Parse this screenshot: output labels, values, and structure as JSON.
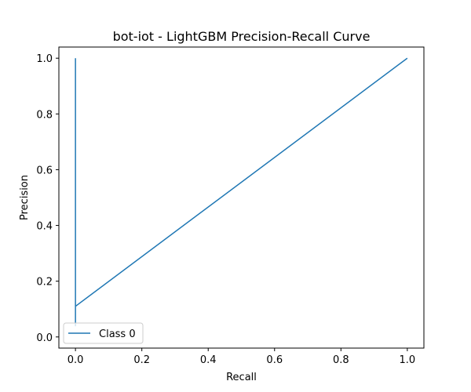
{
  "chart_data": {
    "type": "line",
    "title": "bot-iot - LightGBM Precision-Recall Curve",
    "xlabel": "Recall",
    "ylabel": "Precision",
    "xlim": [
      -0.05,
      1.05
    ],
    "ylim": [
      -0.04,
      1.04
    ],
    "xticks": [
      0.0,
      0.2,
      0.4,
      0.6,
      0.8,
      1.0
    ],
    "yticks": [
      0.0,
      0.2,
      0.4,
      0.6,
      0.8,
      1.0
    ],
    "xtick_labels": [
      "0.0",
      "0.2",
      "0.4",
      "0.6",
      "0.8",
      "1.0"
    ],
    "ytick_labels": [
      "0.0",
      "0.2",
      "0.4",
      "0.6",
      "0.8",
      "1.0"
    ],
    "grid": false,
    "legend_position": "lower-left",
    "series": [
      {
        "name": "Class 0",
        "color": "#1f77b4",
        "x": [
          0.0,
          0.0,
          0.0,
          1.0
        ],
        "y": [
          1.0,
          0.04,
          0.11,
          1.0
        ]
      }
    ]
  }
}
